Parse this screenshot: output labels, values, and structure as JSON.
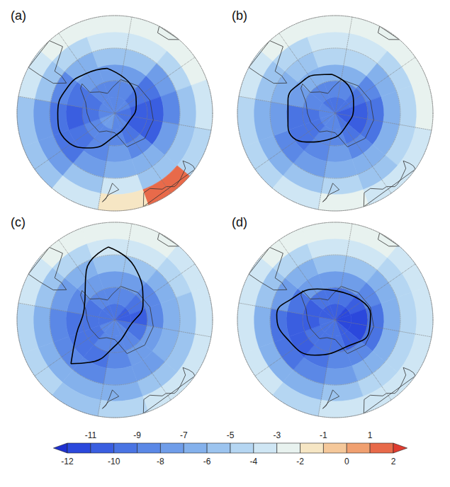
{
  "chart_data": {
    "type": "heatmap",
    "grid": true,
    "tick_labels": false,
    "rlim": [
      0,
      60
    ],
    "rticks": [
      0,
      20,
      40,
      60
    ],
    "thetalim": [
      0,
      360
    ],
    "thetaticks": [
      0,
      45,
      90,
      135,
      180,
      225,
      270,
      315
    ],
    "colat_edges": [
      0,
      10,
      20,
      30,
      40,
      50,
      60
    ],
    "lon_edges": [
      0,
      30,
      60,
      90,
      120,
      150,
      180,
      210,
      240,
      270,
      300,
      330,
      360
    ],
    "coastlines": [
      [
        [
          21,
          0
        ],
        [
          22,
          30
        ],
        [
          23,
          60
        ],
        [
          24,
          90
        ],
        [
          24,
          120
        ],
        [
          22,
          150
        ],
        [
          12,
          170
        ],
        [
          12,
          195
        ],
        [
          15,
          210
        ],
        [
          16,
          240
        ],
        [
          17,
          260
        ],
        [
          19,
          280
        ],
        [
          26,
          296
        ],
        [
          27,
          302
        ],
        [
          20,
          300
        ],
        [
          16,
          315
        ],
        [
          13,
          330
        ],
        [
          16,
          345
        ]
      ],
      [
        [
          35,
          292
        ],
        [
          42,
          286
        ],
        [
          52,
          287
        ],
        [
          60,
          288
        ],
        [
          60,
          308
        ],
        [
          52,
          312
        ],
        [
          45,
          295
        ],
        [
          40,
          295
        ]
      ],
      [
        [
          43,
          172
        ],
        [
          47,
          167
        ],
        [
          50,
          174
        ],
        [
          55,
          178
        ],
        [
          53,
          176
        ],
        [
          48,
          174
        ]
      ],
      [
        [
          51,
          115
        ],
        [
          55,
          114
        ],
        [
          58,
          114
        ],
        [
          60,
          115
        ],
        [
          60,
          153
        ],
        [
          52,
          150
        ],
        [
          51,
          145
        ],
        [
          55,
          138
        ],
        [
          55,
          135
        ],
        [
          58,
          131
        ],
        [
          58,
          129
        ],
        [
          57,
          125
        ],
        [
          55,
          118
        ]
      ],
      [
        [
          56,
          18
        ],
        [
          56,
          26
        ],
        [
          60,
          31
        ],
        [
          60,
          17
        ]
      ]
    ],
    "panels": [
      {
        "label": "(a)",
        "values": [
          [
            -9,
            -9,
            -10,
            -10,
            -9,
            -9,
            -8,
            -8,
            -9,
            -9,
            -9,
            -9
          ],
          [
            -9,
            -10,
            -11,
            -11,
            -10,
            -9,
            -9,
            -9,
            -10,
            -10,
            -9,
            -9
          ],
          [
            -8,
            -10,
            -11,
            -11,
            -9,
            -8,
            -9,
            -10,
            -11,
            -10,
            -8,
            -8
          ],
          [
            -6,
            -8,
            -9,
            -8,
            -7,
            -7,
            -8,
            -10,
            -10,
            -9,
            -7,
            -6
          ],
          [
            -4,
            -5,
            -6,
            -6,
            -6,
            -4,
            -6,
            -8,
            -8,
            -6,
            -5,
            -4
          ],
          [
            -3,
            -3,
            -4,
            -5,
            1,
            -2,
            -4,
            -6,
            -6,
            -4,
            -3,
            -3
          ]
        ],
        "contour": [
          [
            28,
            340
          ],
          [
            20,
            20
          ],
          [
            14,
            60
          ],
          [
            10,
            110
          ],
          [
            14,
            170
          ],
          [
            26,
            205
          ],
          [
            34,
            230
          ],
          [
            35,
            260
          ],
          [
            33,
            290
          ],
          [
            30,
            315
          ]
        ]
      },
      {
        "label": "(b)",
        "values": [
          [
            -10,
            -10,
            -11,
            -11,
            -10,
            -9,
            -9,
            -9,
            -9,
            -9,
            -10,
            -10
          ],
          [
            -9,
            -10,
            -11,
            -11,
            -10,
            -9,
            -9,
            -10,
            -10,
            -9,
            -9,
            -9
          ],
          [
            -7,
            -9,
            -10,
            -10,
            -9,
            -8,
            -9,
            -10,
            -10,
            -8,
            -7,
            -7
          ],
          [
            -5,
            -7,
            -7,
            -7,
            -7,
            -7,
            -8,
            -9,
            -8,
            -7,
            -6,
            -5
          ],
          [
            -4,
            -5,
            -5,
            -5,
            -6,
            -5,
            -6,
            -7,
            -7,
            -6,
            -5,
            -4
          ],
          [
            -3,
            -3,
            -3,
            -4,
            -4,
            -3,
            -4,
            -5,
            -5,
            -4,
            -3,
            -3
          ]
        ],
        "contour": [
          [
            24,
            345
          ],
          [
            18,
            20
          ],
          [
            12,
            60
          ],
          [
            10,
            120
          ],
          [
            16,
            180
          ],
          [
            25,
            215
          ],
          [
            30,
            245
          ],
          [
            30,
            275
          ],
          [
            28,
            305
          ],
          [
            26,
            325
          ]
        ]
      },
      {
        "label": "(c)",
        "values": [
          [
            -10,
            -11,
            -11,
            -10,
            -9,
            -9,
            -9,
            -9,
            -10,
            -10,
            -10,
            -10
          ],
          [
            -9,
            -10,
            -11,
            -10,
            -9,
            -9,
            -9,
            -10,
            -10,
            -10,
            -9,
            -9
          ],
          [
            -8,
            -9,
            -9,
            -8,
            -8,
            -9,
            -10,
            -10,
            -10,
            -9,
            -8,
            -8
          ],
          [
            -6,
            -7,
            -7,
            -7,
            -8,
            -8,
            -9,
            -9,
            -9,
            -8,
            -7,
            -6
          ],
          [
            -4,
            -5,
            -6,
            -6,
            -6,
            -7,
            -7,
            -7,
            -7,
            -6,
            -5,
            -4
          ],
          [
            -3,
            -4,
            -4,
            -4,
            -4,
            -5,
            -6,
            -5,
            -5,
            -4,
            -3,
            -3
          ]
        ],
        "contour": [
          [
            45,
            345
          ],
          [
            35,
            10
          ],
          [
            20,
            50
          ],
          [
            10,
            100
          ],
          [
            16,
            170
          ],
          [
            30,
            200
          ],
          [
            38,
            215
          ],
          [
            25,
            240
          ],
          [
            20,
            280
          ],
          [
            35,
            320
          ]
        ]
      },
      {
        "label": "(d)",
        "values": [
          [
            -11,
            -12,
            -12,
            -12,
            -11,
            -10,
            -10,
            -10,
            -10,
            -11,
            -11,
            -11
          ],
          [
            -10,
            -11,
            -12,
            -12,
            -11,
            -10,
            -10,
            -10,
            -11,
            -11,
            -10,
            -10
          ],
          [
            -8,
            -9,
            -10,
            -10,
            -9,
            -9,
            -10,
            -11,
            -11,
            -10,
            -8,
            -8
          ],
          [
            -6,
            -7,
            -7,
            -7,
            -7,
            -8,
            -9,
            -10,
            -10,
            -8,
            -7,
            -6
          ],
          [
            -4,
            -5,
            -5,
            -5,
            -5,
            -6,
            -7,
            -7,
            -7,
            -6,
            -5,
            -4
          ],
          [
            -3,
            -4,
            -4,
            -4,
            -4,
            -4,
            -5,
            -4,
            -4,
            -4,
            -3,
            -3
          ]
        ],
        "contour": [
          [
            18,
            20
          ],
          [
            22,
            70
          ],
          [
            22,
            100
          ],
          [
            18,
            140
          ],
          [
            25,
            200
          ],
          [
            32,
            240
          ],
          [
            36,
            265
          ],
          [
            30,
            285
          ],
          [
            22,
            320
          ],
          [
            18,
            350
          ]
        ]
      }
    ],
    "colorbar": {
      "range": [
        -12,
        2
      ],
      "levels": [
        -12,
        -11,
        -10,
        -9,
        -8,
        -7,
        -6,
        -5,
        -4,
        -3,
        -2,
        -1,
        0,
        1,
        2
      ],
      "colors": [
        "#1e30d0",
        "#2b48dc",
        "#3a5ee0",
        "#4a74e3",
        "#5b88e6",
        "#6f9de9",
        "#84b1ec",
        "#9cc4ef",
        "#b5d6f2",
        "#cfe6f4",
        "#e8f2ef",
        "#f6e6c4",
        "#f5c89a",
        "#f0a070",
        "#e86a4a",
        "#e03c30"
      ],
      "ticks": [
        -12,
        -10,
        -8,
        -6,
        -4,
        -2,
        0,
        2
      ],
      "top_ticks": [
        -11,
        -9,
        -7,
        -5,
        -3,
        -1,
        1
      ]
    }
  }
}
